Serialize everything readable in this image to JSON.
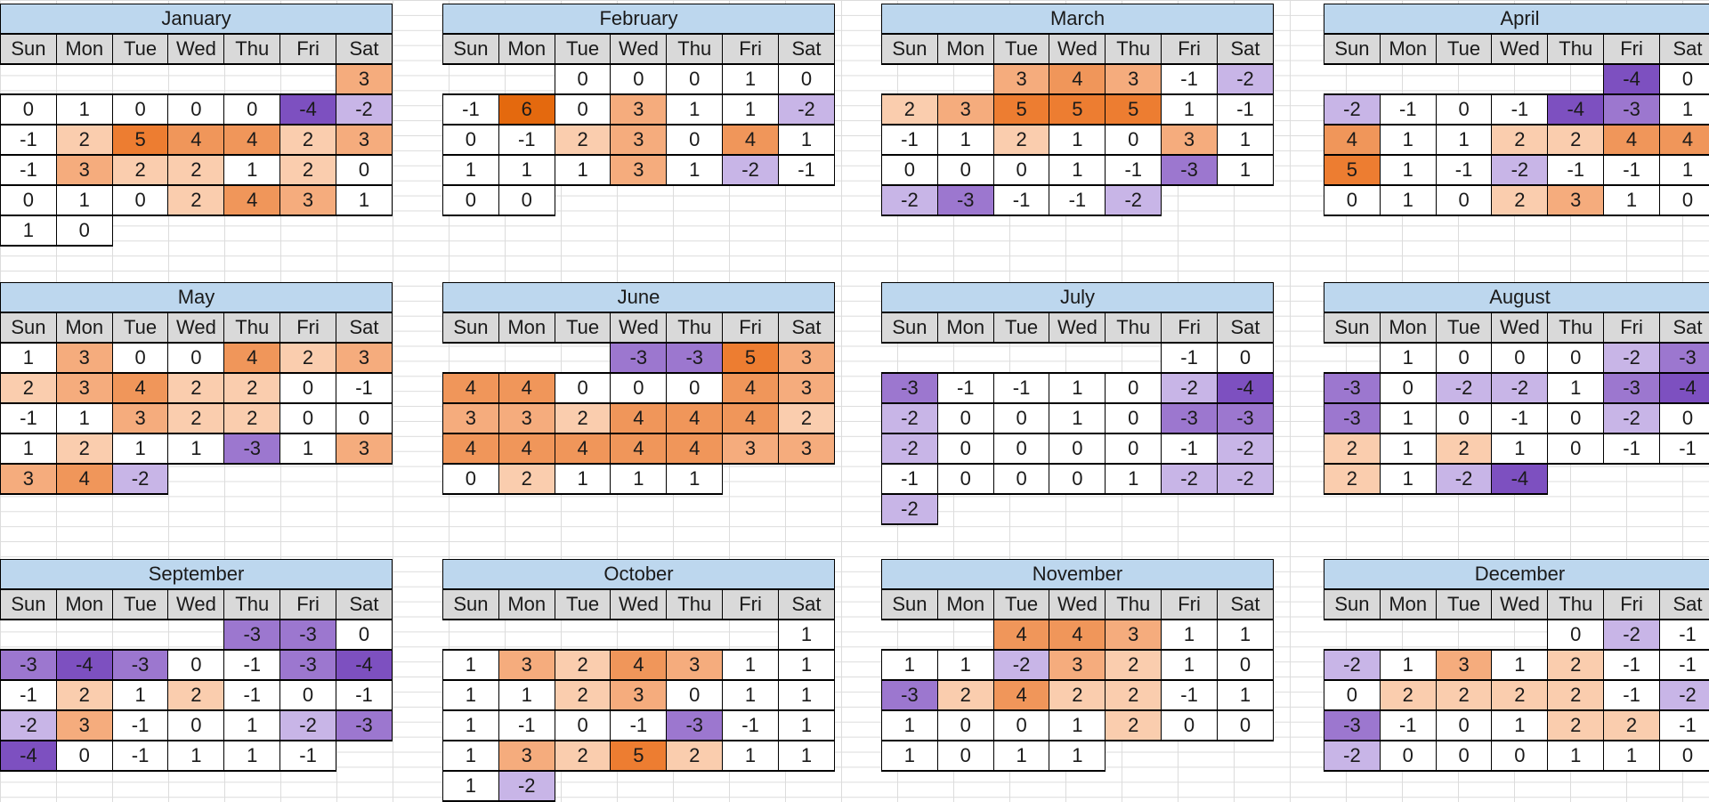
{
  "title": "Monthly calendar heatmap, January through December",
  "colors": {
    "month_title_bg": "#BDD7EE",
    "day_header_bg": "#D9D9D9",
    "cell_border": "#000000",
    "sheet_gridline": "#DCDCDC",
    "positive_accent": "#ED7D31",
    "negative_accent": "#7D50C0"
  },
  "chart_data": {
    "type": "heatmap",
    "title": "Calendar heatmap of daily integer values by weekday for each month",
    "legend_position": "none",
    "grid": "on",
    "value_range": [
      -4,
      6
    ],
    "day_columns": [
      "Sun",
      "Mon",
      "Tue",
      "Wed",
      "Thu",
      "Fri",
      "Sat"
    ],
    "value_color_scale": {
      "-4": "#7D50C0",
      "-3": "#9C77CF",
      "-2": "#C8B5E7",
      "-1": "#FFFFFF",
      "0": "#FFFFFF",
      "1": "#FFFFFF",
      "2": "#FACDAE",
      "3": "#F5AC7D",
      "4": "#F0965A",
      "5": "#ED7D31",
      "6": "#E4690E"
    },
    "months": [
      {
        "name": "January",
        "weeks": [
          [
            null,
            null,
            null,
            null,
            null,
            null,
            3
          ],
          [
            0,
            1,
            0,
            0,
            0,
            -4,
            -2
          ],
          [
            -1,
            2,
            5,
            4,
            4,
            2,
            3
          ],
          [
            -1,
            3,
            2,
            2,
            1,
            2,
            0
          ],
          [
            0,
            1,
            0,
            2,
            4,
            3,
            1
          ],
          [
            1,
            0,
            null,
            null,
            null,
            null,
            null
          ]
        ]
      },
      {
        "name": "February",
        "weeks": [
          [
            null,
            null,
            0,
            0,
            0,
            1,
            0
          ],
          [
            -1,
            6,
            0,
            3,
            1,
            1,
            -2
          ],
          [
            0,
            -1,
            2,
            3,
            0,
            4,
            1
          ],
          [
            1,
            1,
            1,
            3,
            1,
            -2,
            -1
          ],
          [
            0,
            0,
            null,
            null,
            null,
            null,
            null
          ]
        ]
      },
      {
        "name": "March",
        "weeks": [
          [
            null,
            null,
            3,
            4,
            3,
            -1,
            -2
          ],
          [
            2,
            3,
            5,
            5,
            5,
            1,
            -1
          ],
          [
            -1,
            1,
            2,
            1,
            0,
            3,
            1
          ],
          [
            0,
            0,
            0,
            1,
            -1,
            -3,
            1
          ],
          [
            -2,
            -3,
            -1,
            -1,
            -2,
            null,
            null
          ]
        ]
      },
      {
        "name": "April",
        "weeks": [
          [
            null,
            null,
            null,
            null,
            null,
            -4,
            0
          ],
          [
            -2,
            -1,
            0,
            -1,
            -4,
            -3,
            1
          ],
          [
            4,
            1,
            1,
            2,
            2,
            4,
            4
          ],
          [
            5,
            1,
            -1,
            -2,
            -1,
            -1,
            1
          ],
          [
            0,
            1,
            0,
            2,
            3,
            1,
            0
          ]
        ]
      },
      {
        "name": "May",
        "weeks": [
          [
            1,
            3,
            0,
            0,
            4,
            2,
            3
          ],
          [
            2,
            3,
            4,
            2,
            2,
            0,
            -1
          ],
          [
            -1,
            1,
            3,
            2,
            2,
            0,
            0
          ],
          [
            1,
            2,
            1,
            1,
            -3,
            1,
            3
          ],
          [
            3,
            4,
            -2,
            null,
            null,
            null,
            null
          ]
        ]
      },
      {
        "name": "June",
        "weeks": [
          [
            null,
            null,
            null,
            -3,
            -3,
            5,
            3
          ],
          [
            4,
            4,
            0,
            0,
            0,
            4,
            3
          ],
          [
            3,
            3,
            2,
            4,
            4,
            4,
            2
          ],
          [
            4,
            4,
            4,
            4,
            4,
            3,
            3
          ],
          [
            0,
            2,
            1,
            1,
            1,
            null,
            null
          ]
        ]
      },
      {
        "name": "July",
        "weeks": [
          [
            null,
            null,
            null,
            null,
            null,
            -1,
            0
          ],
          [
            -3,
            -1,
            -1,
            1,
            0,
            -2,
            -4
          ],
          [
            -2,
            0,
            0,
            1,
            0,
            -3,
            -3
          ],
          [
            -2,
            0,
            0,
            0,
            0,
            -1,
            -2
          ],
          [
            -1,
            0,
            0,
            0,
            1,
            -2,
            -2
          ],
          [
            -2,
            null,
            null,
            null,
            null,
            null,
            null
          ]
        ]
      },
      {
        "name": "August",
        "weeks": [
          [
            null,
            1,
            0,
            0,
            0,
            -2,
            -3
          ],
          [
            -3,
            0,
            -2,
            -2,
            1,
            -3,
            -4
          ],
          [
            -3,
            1,
            0,
            -1,
            0,
            -2,
            0
          ],
          [
            2,
            1,
            2,
            1,
            0,
            -1,
            -1
          ],
          [
            2,
            1,
            -2,
            -4,
            null,
            null,
            null
          ]
        ]
      },
      {
        "name": "September",
        "weeks": [
          [
            null,
            null,
            null,
            null,
            -3,
            -3,
            0
          ],
          [
            -3,
            -4,
            -3,
            0,
            -1,
            -3,
            -4
          ],
          [
            -1,
            2,
            1,
            2,
            -1,
            0,
            -1
          ],
          [
            -2,
            3,
            -1,
            0,
            1,
            -2,
            -3
          ],
          [
            -4,
            0,
            -1,
            1,
            1,
            -1,
            null
          ]
        ]
      },
      {
        "name": "October",
        "weeks": [
          [
            null,
            null,
            null,
            null,
            null,
            null,
            1
          ],
          [
            1,
            3,
            2,
            4,
            3,
            1,
            1
          ],
          [
            1,
            1,
            2,
            3,
            0,
            1,
            1
          ],
          [
            1,
            -1,
            0,
            -1,
            -3,
            -1,
            1
          ],
          [
            1,
            3,
            2,
            5,
            2,
            1,
            1
          ],
          [
            1,
            -2,
            null,
            null,
            null,
            null,
            null
          ]
        ]
      },
      {
        "name": "November",
        "weeks": [
          [
            null,
            null,
            4,
            4,
            3,
            1,
            1
          ],
          [
            1,
            1,
            -2,
            3,
            2,
            1,
            0
          ],
          [
            -3,
            2,
            4,
            2,
            2,
            -1,
            1
          ],
          [
            1,
            0,
            0,
            1,
            2,
            0,
            0
          ],
          [
            1,
            0,
            1,
            1,
            null,
            null,
            null
          ]
        ]
      },
      {
        "name": "December",
        "weeks": [
          [
            null,
            null,
            null,
            null,
            0,
            -2,
            -1
          ],
          [
            -2,
            1,
            3,
            1,
            2,
            -1,
            -1
          ],
          [
            0,
            2,
            2,
            2,
            2,
            -1,
            -2
          ],
          [
            -3,
            -1,
            0,
            1,
            2,
            2,
            -1
          ],
          [
            -2,
            0,
            0,
            0,
            1,
            1,
            0
          ]
        ]
      }
    ]
  }
}
